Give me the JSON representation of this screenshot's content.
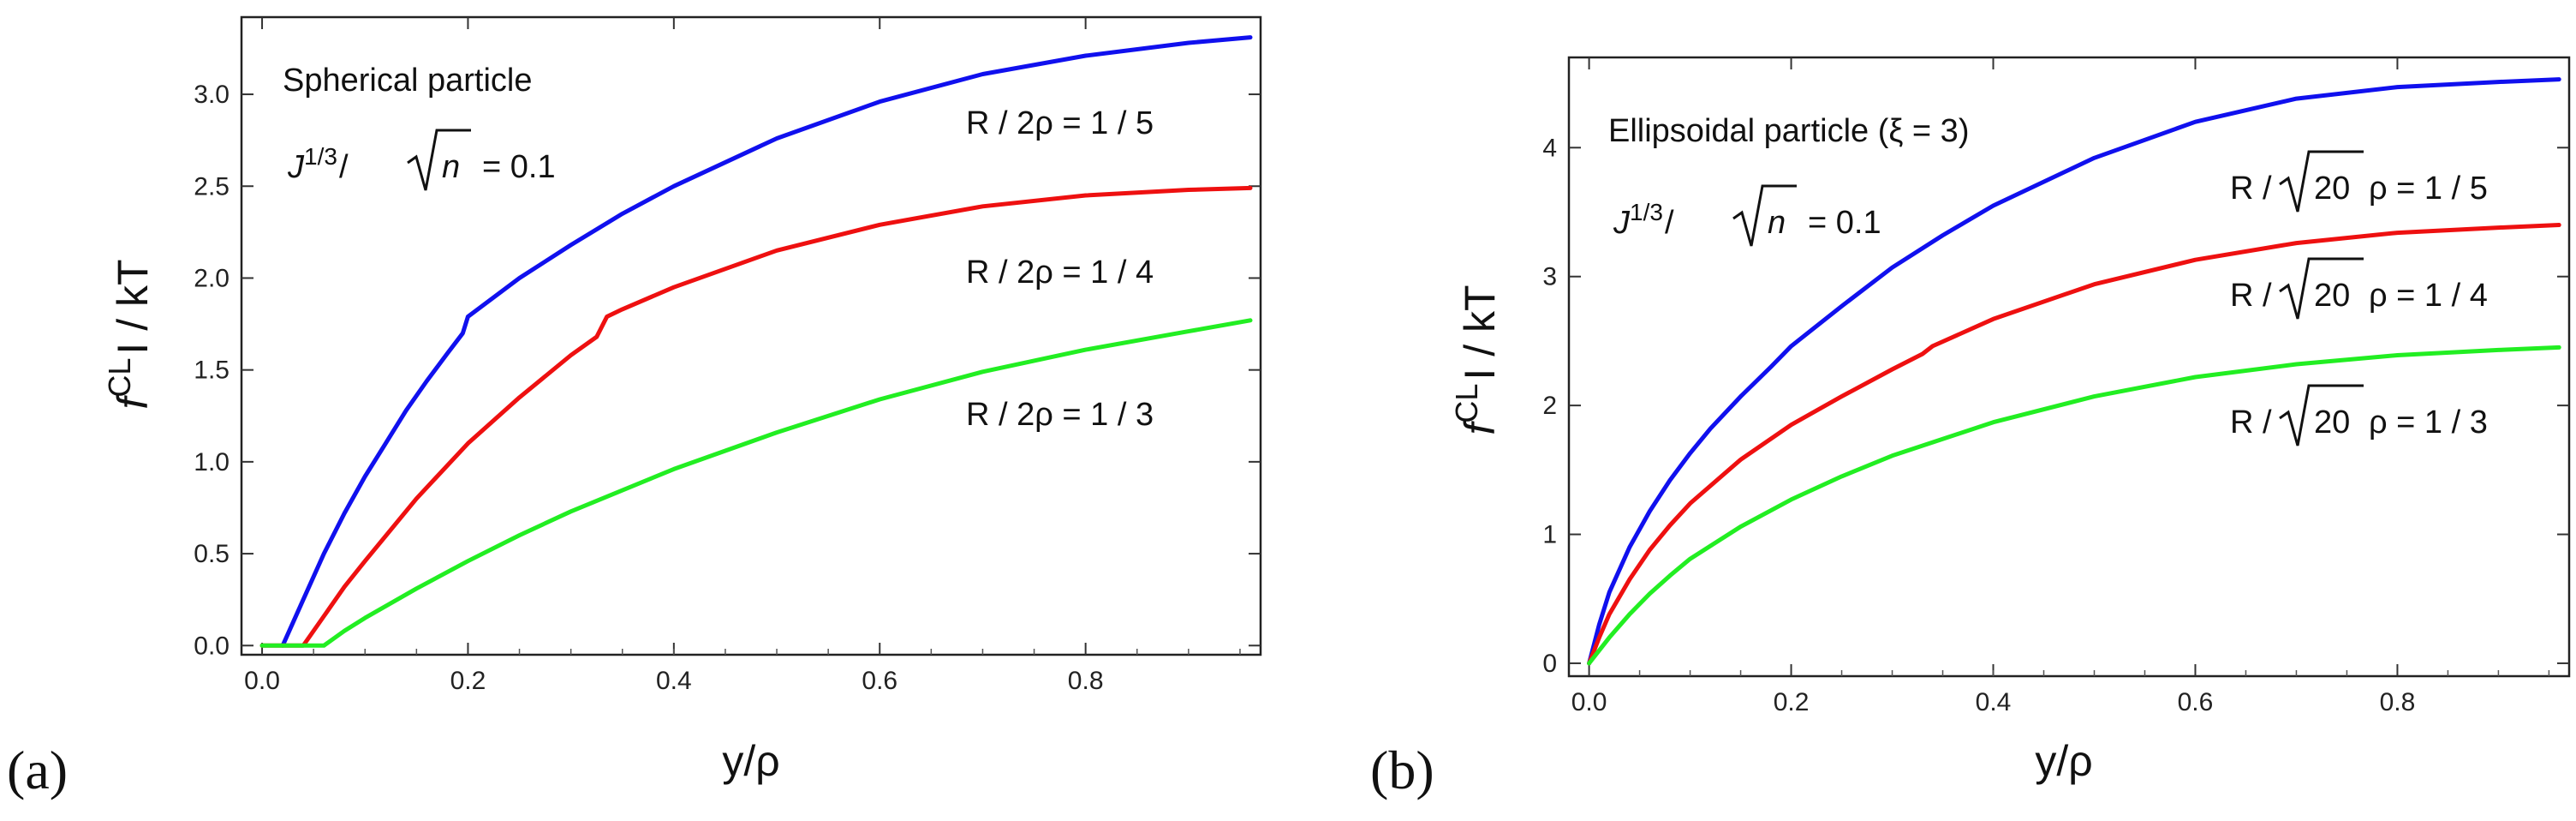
{
  "chart_data": [
    {
      "type": "line",
      "panel_label": "(a)",
      "xlabel": "y/ρ",
      "ylabel_main": "f",
      "ylabel_sup": "CL",
      "ylabel_rest": "I / kT",
      "xlim": [
        -0.02,
        0.97
      ],
      "ylim": [
        -0.05,
        3.42
      ],
      "xticks": [
        "0.0",
        "0.2",
        "0.4",
        "0.6",
        "0.8"
      ],
      "xtick_values": [
        0.0,
        0.2,
        0.4,
        0.6,
        0.8
      ],
      "yticks": [
        "0.0",
        "0.5",
        "1.0",
        "1.5",
        "2.0",
        "2.5",
        "3.0"
      ],
      "ytick_values": [
        0.0,
        0.5,
        1.0,
        1.5,
        2.0,
        2.5,
        3.0
      ],
      "annotations": {
        "title": "Spherical particle",
        "param_j": "J",
        "param_exp": "1/3",
        "param_slash": "/",
        "param_n": "n",
        "param_value": "= 0.1"
      },
      "series": [
        {
          "name": "R / 2ρ = 1 / 5",
          "color": "#1010ee",
          "x": [
            0.02,
            0.04,
            0.06,
            0.08,
            0.1,
            0.12,
            0.14,
            0.16,
            0.18,
            0.195,
            0.2,
            0.25,
            0.3,
            0.35,
            0.4,
            0.5,
            0.6,
            0.7,
            0.8,
            0.9,
            0.96
          ],
          "y": [
            0.0,
            0.25,
            0.5,
            0.72,
            0.92,
            1.1,
            1.28,
            1.44,
            1.59,
            1.7,
            1.79,
            2.0,
            2.18,
            2.35,
            2.5,
            2.76,
            2.96,
            3.11,
            3.21,
            3.28,
            3.31
          ]
        },
        {
          "name": "R / 2ρ = 1 / 4",
          "color": "#ee1010",
          "x": [
            0.0,
            0.02,
            0.04,
            0.06,
            0.08,
            0.1,
            0.15,
            0.2,
            0.25,
            0.3,
            0.325,
            0.335,
            0.35,
            0.4,
            0.5,
            0.6,
            0.7,
            0.8,
            0.9,
            0.96
          ],
          "y": [
            0.0,
            0.0,
            0.0,
            0.16,
            0.32,
            0.46,
            0.8,
            1.1,
            1.35,
            1.58,
            1.68,
            1.79,
            1.83,
            1.95,
            2.15,
            2.29,
            2.39,
            2.45,
            2.48,
            2.49
          ]
        },
        {
          "name": "R / 2ρ = 1 / 3",
          "color": "#22ee22",
          "x": [
            0.0,
            0.02,
            0.04,
            0.06,
            0.08,
            0.1,
            0.15,
            0.2,
            0.25,
            0.3,
            0.4,
            0.5,
            0.6,
            0.7,
            0.8,
            0.9,
            0.96
          ],
          "y": [
            0.0,
            0.0,
            0.0,
            0.0,
            0.08,
            0.15,
            0.31,
            0.46,
            0.6,
            0.73,
            0.96,
            1.16,
            1.34,
            1.49,
            1.61,
            1.71,
            1.77
          ]
        }
      ]
    },
    {
      "type": "line",
      "panel_label": "(b)",
      "xlabel": "y/ρ",
      "ylabel_main": "f",
      "ylabel_sup": "CL",
      "ylabel_rest": "I / kT",
      "xlim": [
        -0.02,
        0.97
      ],
      "ylim": [
        -0.1,
        4.7
      ],
      "xticks": [
        "0.0",
        "0.2",
        "0.4",
        "0.6",
        "0.8"
      ],
      "xtick_values": [
        0.0,
        0.2,
        0.4,
        0.6,
        0.8
      ],
      "yticks": [
        "0",
        "1",
        "2",
        "3",
        "4"
      ],
      "ytick_values": [
        0,
        1,
        2,
        3,
        4
      ],
      "annotations": {
        "title": "Ellipsoidal particle (ξ = 3)",
        "param_j": "J",
        "param_exp": "1/3",
        "param_slash": "/",
        "param_n": "n",
        "param_value": "= 0.1"
      },
      "series": [
        {
          "name": "R / √20 ρ = 1 / 5",
          "label_prefix": "R /",
          "label_sqrt": "20",
          "label_suffix": "ρ = 1 / 5",
          "color": "#1010ee",
          "x": [
            0.0,
            0.01,
            0.02,
            0.04,
            0.06,
            0.08,
            0.1,
            0.12,
            0.15,
            0.18,
            0.2,
            0.25,
            0.3,
            0.35,
            0.4,
            0.5,
            0.6,
            0.7,
            0.8,
            0.9,
            0.96
          ],
          "y": [
            0.0,
            0.3,
            0.55,
            0.9,
            1.18,
            1.42,
            1.63,
            1.82,
            2.07,
            2.3,
            2.46,
            2.77,
            3.07,
            3.32,
            3.55,
            3.92,
            4.2,
            4.38,
            4.47,
            4.51,
            4.53
          ]
        },
        {
          "name": "R / √20 ρ = 1 / 4",
          "label_prefix": "R /",
          "label_sqrt": "20",
          "label_suffix": "ρ = 1 / 4",
          "color": "#ee1010",
          "x": [
            0.0,
            0.01,
            0.02,
            0.04,
            0.06,
            0.08,
            0.1,
            0.15,
            0.2,
            0.25,
            0.3,
            0.33,
            0.34,
            0.4,
            0.5,
            0.6,
            0.7,
            0.8,
            0.9,
            0.96
          ],
          "y": [
            0.0,
            0.2,
            0.38,
            0.65,
            0.88,
            1.07,
            1.24,
            1.58,
            1.85,
            2.07,
            2.28,
            2.4,
            2.46,
            2.67,
            2.94,
            3.13,
            3.26,
            3.34,
            3.38,
            3.4
          ]
        },
        {
          "name": "R / √20 ρ = 1 / 3",
          "label_prefix": "R /",
          "label_sqrt": "20",
          "label_suffix": "ρ = 1 / 3",
          "color": "#22ee22",
          "x": [
            0.0,
            0.01,
            0.02,
            0.04,
            0.06,
            0.08,
            0.1,
            0.15,
            0.2,
            0.25,
            0.3,
            0.4,
            0.5,
            0.6,
            0.7,
            0.8,
            0.9,
            0.96
          ],
          "y": [
            0.0,
            0.1,
            0.2,
            0.38,
            0.54,
            0.68,
            0.81,
            1.06,
            1.27,
            1.45,
            1.61,
            1.87,
            2.07,
            2.22,
            2.32,
            2.39,
            2.43,
            2.45
          ]
        }
      ]
    }
  ]
}
